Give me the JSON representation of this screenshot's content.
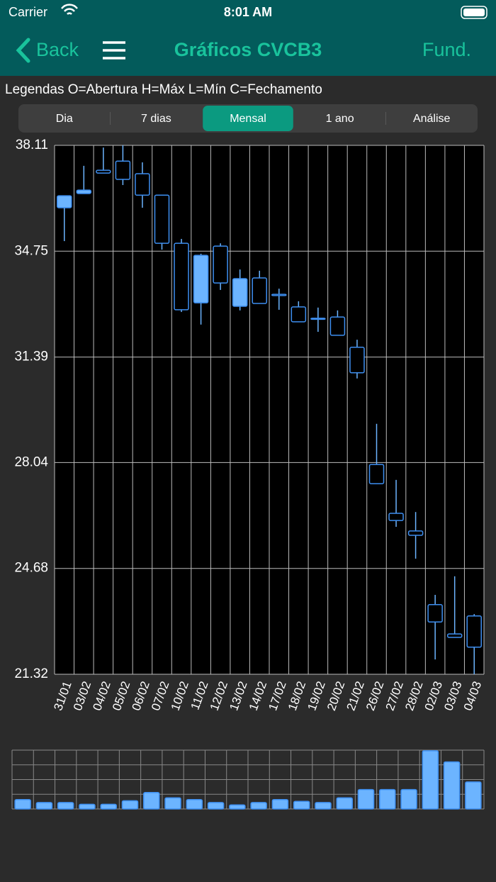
{
  "status_bar": {
    "carrier": "Carrier",
    "time": "8:01 AM"
  },
  "nav": {
    "back": "Back",
    "title": "Gráficos CVCB3",
    "right": "Fund."
  },
  "legend": "Legendas O=Abertura H=Máx L=Mín C=Fechamento",
  "segments": {
    "items": [
      "Dia",
      "7 dias",
      "Mensal",
      "1 ano",
      "Análise"
    ],
    "selected": 2
  },
  "chart_data": [
    {
      "type": "candlestick",
      "categories": [
        "31/01",
        "03/02",
        "04/02",
        "05/02",
        "06/02",
        "07/02",
        "10/02",
        "11/02",
        "12/02",
        "13/02",
        "14/02",
        "17/02",
        "18/02",
        "19/02",
        "20/02",
        "21/02",
        "26/02",
        "27/02",
        "28/02",
        "02/03",
        "03/03",
        "04/03"
      ],
      "open": [
        36.51,
        36.69,
        37.23,
        37.03,
        36.53,
        35.0,
        32.89,
        34.62,
        33.74,
        33.88,
        33.09,
        33.34,
        32.51,
        32.6,
        32.08,
        30.89,
        27.37,
        26.2,
        25.73,
        22.98,
        22.49,
        22.18
      ],
      "high": [
        36.51,
        37.46,
        38.04,
        38.11,
        37.57,
        36.53,
        35.14,
        34.67,
        35.0,
        34.17,
        34.13,
        33.56,
        33.16,
        32.96,
        32.87,
        31.94,
        29.27,
        27.49,
        26.47,
        23.84,
        24.43,
        23.23
      ],
      "low": [
        35.07,
        36.58,
        37.23,
        36.85,
        36.13,
        34.8,
        32.82,
        32.42,
        33.52,
        32.87,
        33.09,
        32.89,
        32.51,
        32.19,
        32.08,
        30.71,
        27.37,
        26.0,
        24.99,
        21.79,
        22.49,
        21.32
      ],
      "close": [
        36.13,
        36.58,
        37.32,
        37.61,
        37.21,
        36.53,
        35.0,
        33.11,
        34.91,
        33.0,
        33.9,
        33.38,
        32.98,
        32.62,
        32.66,
        31.7,
        27.98,
        26.43,
        25.87,
        23.53,
        22.6,
        23.17
      ],
      "ylim": [
        21.32,
        38.11
      ],
      "yticks": [
        21.32,
        24.68,
        28.04,
        31.39,
        34.75,
        38.11
      ],
      "color": "#6cb4ff",
      "grid": true
    },
    {
      "type": "bar",
      "values": [
        16,
        11,
        11,
        8,
        8,
        14,
        28,
        19,
        16,
        11,
        7,
        11,
        16,
        13,
        11,
        19,
        33,
        33,
        33,
        99,
        80,
        46
      ],
      "ylim": [
        0,
        100
      ],
      "yticks": [
        0,
        25,
        50,
        75,
        100
      ],
      "color": "#6cb4ff",
      "grid": true
    }
  ]
}
